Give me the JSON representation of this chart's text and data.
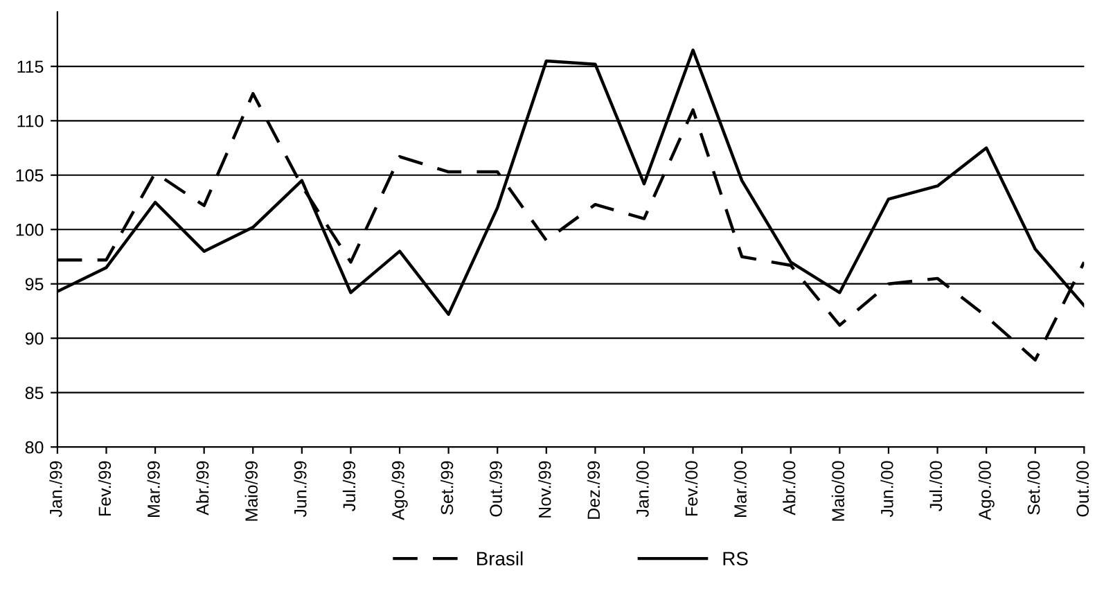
{
  "chart_data": {
    "type": "line",
    "categories": [
      "Jan./99",
      "Fev./99",
      "Mar./99",
      "Abr./99",
      "Maio/99",
      "Jun./99",
      "Jul./99",
      "Ago./99",
      "Set./99",
      "Out./99",
      "Nov./99",
      "Dez./99",
      "Jan./00",
      "Fev./00",
      "Mar./00",
      "Abr./00",
      "Maio/00",
      "Jun./00",
      "Jul./00",
      "Ago./00",
      "Set./00",
      "Out./00"
    ],
    "series": [
      {
        "name": "Brasil",
        "color": "#000000",
        "line_style": "dashed",
        "values": [
          97.2,
          97.2,
          105.2,
          102.2,
          112.5,
          104,
          97,
          106.7,
          105.3,
          105.3,
          99,
          102.3,
          101,
          111,
          97.5,
          96.7,
          91.2,
          95,
          95.5,
          92,
          88,
          97
        ]
      },
      {
        "name": "RS",
        "color": "#000000",
        "line_style": "solid",
        "values": [
          94.3,
          96.5,
          102.5,
          98,
          100.2,
          104.5,
          94.2,
          98,
          92.2,
          102,
          115.5,
          115.2,
          104.2,
          116.5,
          104.5,
          97,
          94.2,
          102.8,
          104,
          107.5,
          98.2,
          93
        ]
      }
    ],
    "ylim": [
      80,
      120
    ],
    "yticks": [
      80,
      85,
      90,
      95,
      100,
      105,
      110,
      115
    ],
    "grid": "y",
    "legend": "bottom",
    "marker": "none"
  }
}
